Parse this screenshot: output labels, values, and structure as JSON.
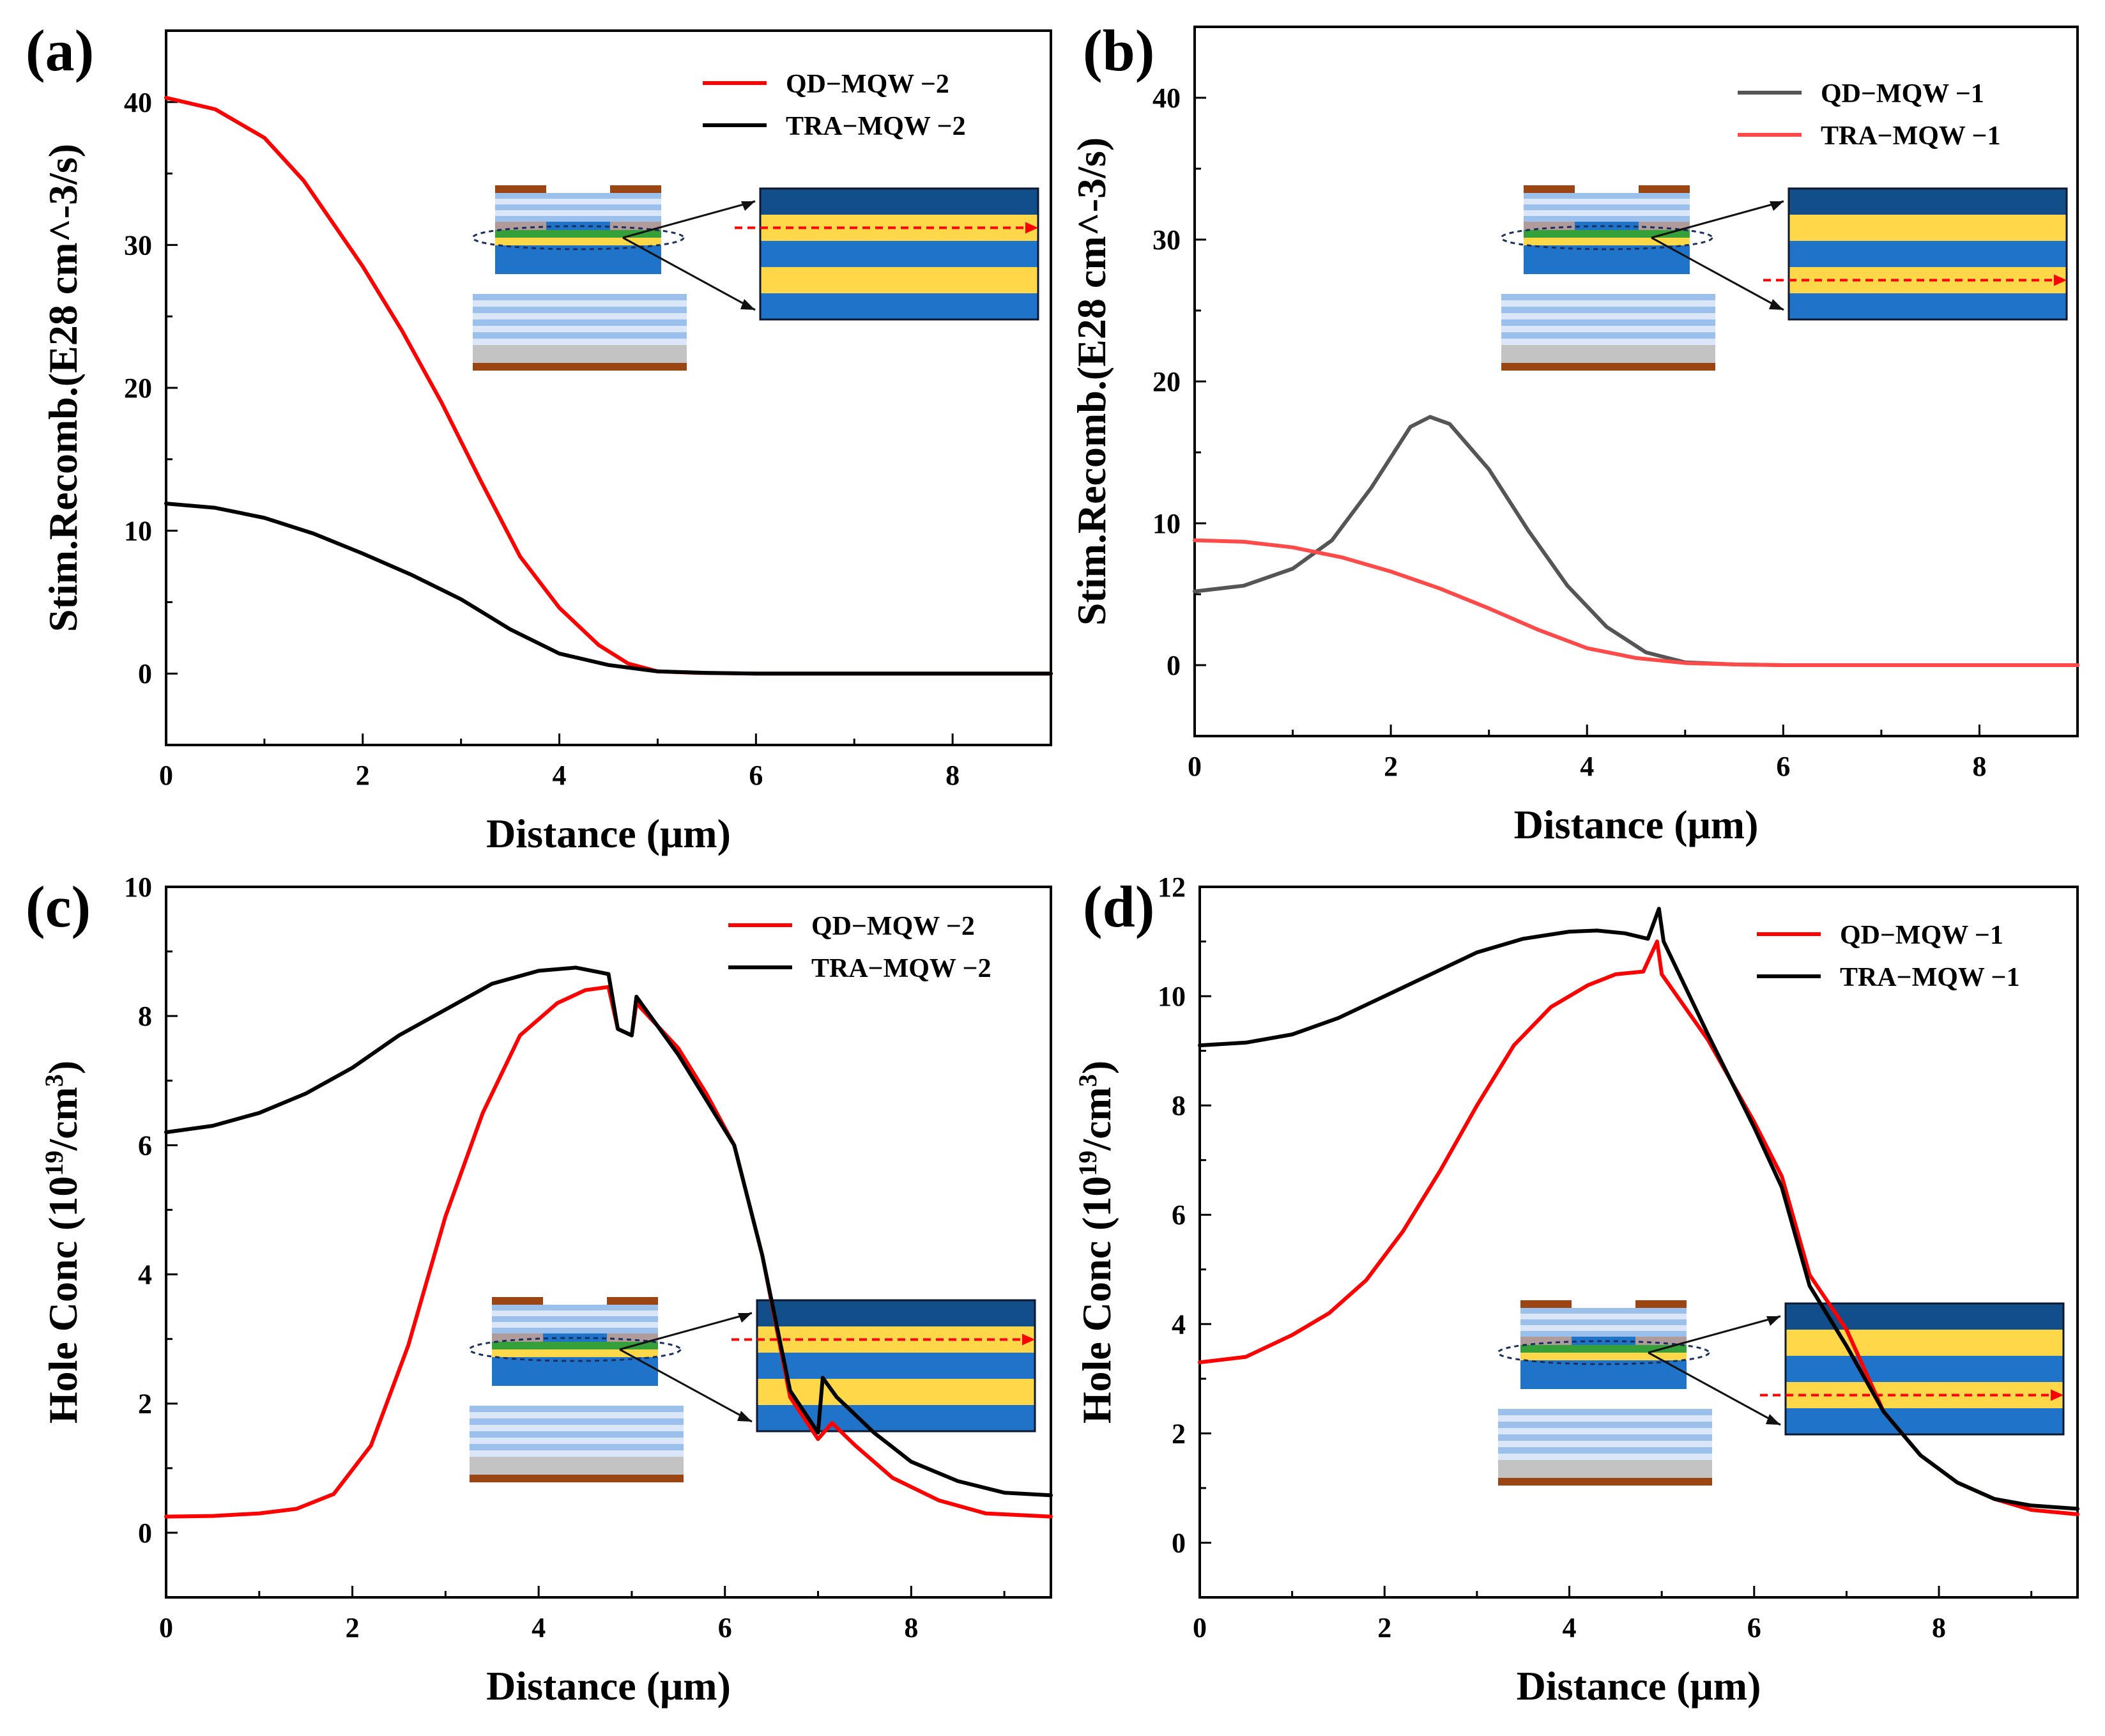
{
  "chart_data": [
    {
      "panel": "(a)",
      "type": "line",
      "title": "",
      "xlabel": "Distance (μm)",
      "ylabel": "Stim.Recomb.(E28 cm^-3/s)",
      "xlim": [
        0,
        9
      ],
      "ylim": [
        -5,
        45
      ],
      "xticks": [
        0,
        2,
        4,
        6,
        8
      ],
      "yticks": [
        0,
        10,
        20,
        30,
        40
      ],
      "legend_position": "top-right",
      "series": [
        {
          "name": "QD−MQW −2",
          "color": "#ff0000",
          "x": [
            0,
            0.5,
            1,
            1.4,
            2,
            2.4,
            2.8,
            3.2,
            3.6,
            4,
            4.4,
            4.7,
            5,
            5.4,
            6,
            9
          ],
          "y": [
            40.3,
            39.5,
            37.5,
            34.5,
            28.5,
            24,
            19,
            13.5,
            8.2,
            4.6,
            2.0,
            0.7,
            0.15,
            0.05,
            0,
            0
          ]
        },
        {
          "name": "TRA−MQW −2",
          "color": "#000000",
          "x": [
            0,
            0.5,
            1,
            1.5,
            2,
            2.5,
            3,
            3.5,
            4,
            4.5,
            5,
            5.5,
            6,
            9
          ],
          "y": [
            11.9,
            11.6,
            10.9,
            9.8,
            8.4,
            6.9,
            5.2,
            3.1,
            1.4,
            0.6,
            0.15,
            0.05,
            0,
            0
          ]
        }
      ]
    },
    {
      "panel": "(b)",
      "type": "line",
      "title": "",
      "xlabel": "Distance (μm)",
      "ylabel": "Stim.Recomb.(E28 cm^-3/s)",
      "xlim": [
        0,
        9
      ],
      "ylim": [
        -5,
        45
      ],
      "xticks": [
        0,
        2,
        4,
        6,
        8
      ],
      "yticks": [
        0,
        10,
        20,
        30,
        40
      ],
      "legend_position": "top-right",
      "series": [
        {
          "name": "QD−MQW −1",
          "color": "#555555",
          "x": [
            0,
            0.5,
            1,
            1.4,
            1.8,
            2.2,
            2.4,
            2.6,
            3,
            3.4,
            3.8,
            4.2,
            4.6,
            5,
            5.5,
            6,
            9
          ],
          "y": [
            5.2,
            5.6,
            6.8,
            8.8,
            12.5,
            16.8,
            17.5,
            17.0,
            13.8,
            9.5,
            5.6,
            2.7,
            0.9,
            0.2,
            0.05,
            0,
            0
          ]
        },
        {
          "name": "TRA−MQW −1",
          "color": "#ff4a4a",
          "x": [
            0,
            0.5,
            1,
            1.5,
            2,
            2.5,
            3,
            3.5,
            4,
            4.5,
            5,
            5.5,
            6,
            9
          ],
          "y": [
            8.8,
            8.7,
            8.3,
            7.6,
            6.6,
            5.4,
            4.0,
            2.5,
            1.2,
            0.5,
            0.15,
            0.05,
            0,
            0
          ]
        }
      ]
    },
    {
      "panel": "(c)",
      "type": "line",
      "title": "",
      "xlabel": "Distance (μm)",
      "ylabel": "Hole Conc (10^19/cm^3)",
      "ylabel_parts": [
        "Hole Conc (10",
        "19",
        "/cm",
        "3",
        ")"
      ],
      "xlim": [
        0,
        9.5
      ],
      "ylim": [
        -1,
        10
      ],
      "xticks": [
        0,
        2,
        4,
        6,
        8
      ],
      "yticks": [
        0,
        2,
        4,
        6,
        8,
        10
      ],
      "legend_position": "top-right",
      "series": [
        {
          "name": "QD−MQW −2",
          "color": "#ff0000",
          "x": [
            0,
            0.5,
            1,
            1.4,
            1.8,
            2.2,
            2.6,
            3,
            3.4,
            3.8,
            4.2,
            4.5,
            4.75,
            4.85,
            5,
            5.05,
            5.5,
            5.8,
            6.1,
            6.4,
            6.7,
            7,
            7.15,
            7.4,
            7.8,
            8.3,
            8.8,
            9.5
          ],
          "y": [
            0.25,
            0.26,
            0.3,
            0.37,
            0.6,
            1.35,
            2.9,
            4.9,
            6.5,
            7.7,
            8.2,
            8.4,
            8.45,
            7.8,
            7.7,
            8.2,
            7.5,
            6.8,
            6.0,
            4.3,
            2.1,
            1.45,
            1.7,
            1.35,
            0.85,
            0.5,
            0.3,
            0.25
          ]
        },
        {
          "name": "TRA−MQW −2",
          "color": "#000000",
          "x": [
            0,
            0.5,
            1,
            1.5,
            2,
            2.5,
            3,
            3.5,
            4,
            4.4,
            4.75,
            4.85,
            5,
            5.05,
            5.5,
            5.8,
            6.1,
            6.4,
            6.7,
            7,
            7.05,
            7.2,
            7.6,
            8,
            8.5,
            9,
            9.5
          ],
          "y": [
            6.2,
            6.3,
            6.5,
            6.8,
            7.2,
            7.7,
            8.1,
            8.5,
            8.7,
            8.75,
            8.65,
            7.8,
            7.7,
            8.3,
            7.4,
            6.7,
            6.0,
            4.3,
            2.2,
            1.55,
            2.4,
            2.1,
            1.55,
            1.1,
            0.8,
            0.62,
            0.58
          ]
        }
      ]
    },
    {
      "panel": "(d)",
      "type": "line",
      "title": "",
      "xlabel": "Distance (μm)",
      "ylabel": "Hole Conc (10^19/cm^3)",
      "ylabel_parts": [
        "Hole Conc (10",
        "19",
        "/cm",
        "3",
        ")"
      ],
      "xlim": [
        0,
        9.5
      ],
      "ylim": [
        -1,
        12
      ],
      "xticks": [
        0,
        2,
        4,
        6,
        8
      ],
      "yticks": [
        0,
        2,
        4,
        6,
        8,
        10,
        12
      ],
      "legend_position": "top-right",
      "series": [
        {
          "name": "QD−MQW −1",
          "color": "#ff0000",
          "x": [
            0,
            0.5,
            1,
            1.4,
            1.8,
            2.2,
            2.6,
            3,
            3.4,
            3.8,
            4.2,
            4.5,
            4.8,
            4.95,
            5,
            5.5,
            6,
            6.3,
            6.6,
            7,
            7.4,
            7.8,
            8.2,
            8.6,
            9,
            9.5
          ],
          "y": [
            3.3,
            3.4,
            3.8,
            4.2,
            4.8,
            5.7,
            6.8,
            8.0,
            9.1,
            9.8,
            10.2,
            10.4,
            10.45,
            11.0,
            10.4,
            9.2,
            7.7,
            6.7,
            4.9,
            3.9,
            2.4,
            1.6,
            1.1,
            0.8,
            0.6,
            0.52
          ]
        },
        {
          "name": "TRA−MQW −1",
          "color": "#000000",
          "x": [
            0,
            0.5,
            1,
            1.5,
            2,
            2.5,
            3,
            3.5,
            4,
            4.3,
            4.6,
            4.85,
            4.97,
            5.02,
            5.5,
            6,
            6.3,
            6.6,
            7,
            7.4,
            7.8,
            8.2,
            8.6,
            9,
            9.5
          ],
          "y": [
            9.1,
            9.15,
            9.3,
            9.6,
            10.0,
            10.4,
            10.8,
            11.05,
            11.18,
            11.2,
            11.15,
            11.05,
            11.6,
            11.0,
            9.3,
            7.6,
            6.5,
            4.7,
            3.6,
            2.4,
            1.6,
            1.1,
            0.8,
            0.68,
            0.62
          ]
        }
      ]
    }
  ],
  "inset_colors": {
    "dark_blue": "#124f8a",
    "mid_blue": "#1f74c9",
    "yellow": "#ffd84a",
    "light_stripe": "#9cc0ec",
    "pale_stripe": "#dbe7f8",
    "gray": "#c3c3c3",
    "contact_brown": "#9a4512",
    "green": "#35a03a",
    "pink_gray": "#b09a9a",
    "arrow_red": "#ff0000"
  }
}
